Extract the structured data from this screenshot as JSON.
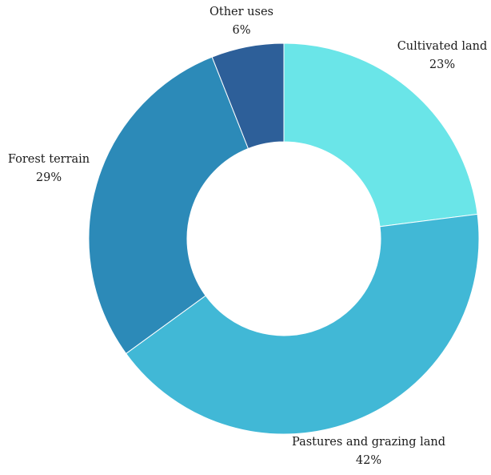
{
  "chart_data": {
    "type": "pie",
    "variant": "donut",
    "title": "",
    "start": "top, clockwise",
    "slices": [
      {
        "label": "Cultivated land",
        "value": 23,
        "value_label": "23%",
        "color": "#6ae5e8"
      },
      {
        "label": "Pastures and grazing land",
        "value": 42,
        "value_label": "42%",
        "color": "#41b8d6"
      },
      {
        "label": "Forest terrain",
        "value": 29,
        "value_label": "29%",
        "color": "#2c8ab8"
      },
      {
        "label": "Other uses",
        "value": 6,
        "value_label": "6%",
        "color": "#2d5f99"
      }
    ],
    "legend": "none",
    "background": "#ffffff"
  }
}
